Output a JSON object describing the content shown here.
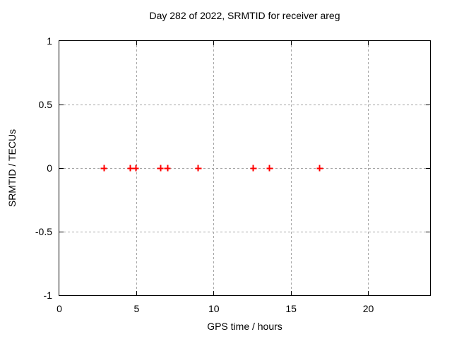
{
  "chart_data": {
    "type": "scatter",
    "title": "Day 282 of 2022, SRMTID for receiver areg",
    "xlabel": "GPS time / hours",
    "ylabel": "SRMTID / TECUs",
    "xlim": [
      0,
      24
    ],
    "ylim": [
      -1,
      1
    ],
    "xticks": [
      0,
      5,
      10,
      15,
      20
    ],
    "xtick_labels": [
      "0",
      "5",
      "10",
      "15",
      "20"
    ],
    "yticks": [
      -1,
      -0.5,
      0,
      0.5,
      1
    ],
    "ytick_labels": [
      "-1",
      "-0.5",
      "0",
      "0.5",
      "1"
    ],
    "grid": true,
    "grid_style": "dashed",
    "legend": "none",
    "series": [
      {
        "name": "srmtid",
        "marker": "plus",
        "color": "#ff0000",
        "x": [
          2.9,
          4.6,
          4.95,
          6.55,
          7.0,
          9.0,
          12.55,
          13.6,
          16.85
        ],
        "y": [
          0,
          0,
          0,
          0,
          0,
          0,
          0,
          0,
          0
        ]
      }
    ],
    "colors": {
      "background": "#ffffff",
      "border": "#000000",
      "grid": "#a6a6a6",
      "text": "#000000"
    }
  }
}
